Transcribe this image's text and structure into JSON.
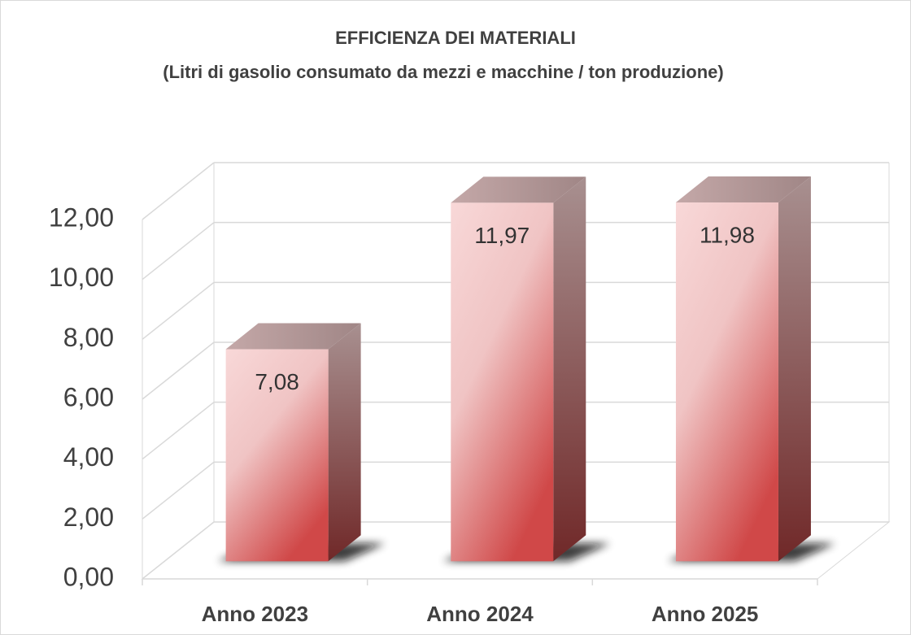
{
  "chart_data": {
    "type": "bar3d",
    "title": "EFFICIENZA DEI MATERIALI",
    "subtitle": "(Litri di gasolio consumato da mezzi e macchine / ton produzione)",
    "categories": [
      "Anno 2023",
      "Anno 2024",
      "Anno 2025"
    ],
    "values": [
      7.08,
      11.97,
      11.98
    ],
    "value_labels": [
      "7,08",
      "11,97",
      "11,98"
    ],
    "ylim": [
      0,
      12
    ],
    "yticks": [
      {
        "value": 0,
        "label": "0,00"
      },
      {
        "value": 2,
        "label": "2,00"
      },
      {
        "value": 4,
        "label": "4,00"
      },
      {
        "value": 6,
        "label": "6,00"
      },
      {
        "value": 8,
        "label": "8,00"
      },
      {
        "value": 10,
        "label": "10,00"
      },
      {
        "value": 12,
        "label": "12,00"
      }
    ],
    "grid": true
  }
}
